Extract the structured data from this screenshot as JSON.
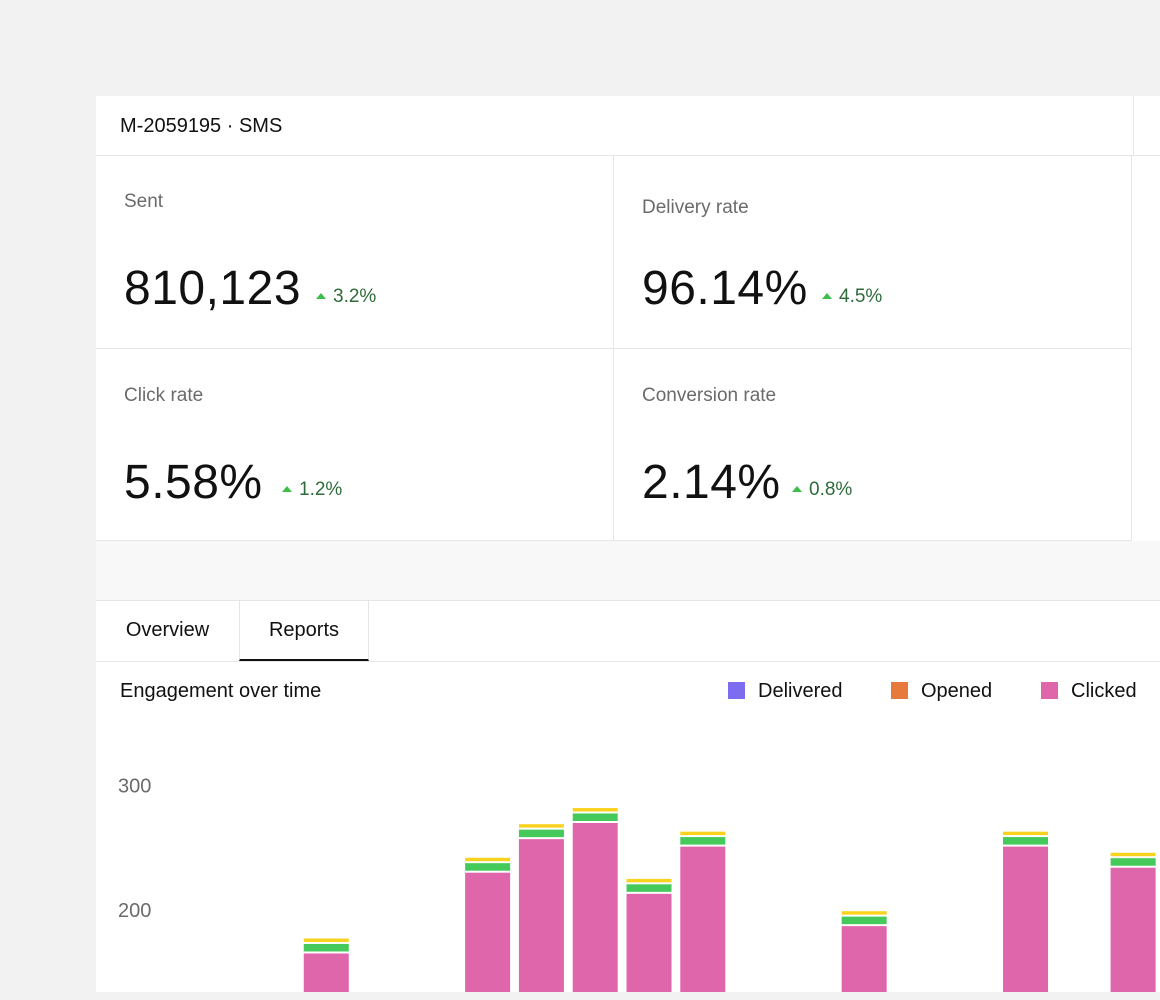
{
  "header": {
    "title": "M-2059195 · SMS"
  },
  "stats": [
    {
      "label": "Sent",
      "value": "810,123",
      "delta": "3.2%"
    },
    {
      "label": "Delivery rate",
      "value": "96.14%",
      "delta": "4.5%"
    },
    {
      "label": "Click rate",
      "value": "5.58%",
      "delta": "1.2%"
    },
    {
      "label": "Conversion rate",
      "value": "2.14%",
      "delta": "0.8%"
    }
  ],
  "tabs": [
    {
      "label": "Overview",
      "active": false
    },
    {
      "label": "Reports",
      "active": true
    }
  ],
  "chart_data": {
    "type": "bar",
    "stacked": true,
    "title": "Engagement over time",
    "legend": [
      {
        "name": "Delivered",
        "color": "#7b6cf0"
      },
      {
        "name": "Opened",
        "color": "#e8793c"
      },
      {
        "name": "Clicked",
        "color": "#e066ab"
      }
    ],
    "segment_colors": {
      "clicked": "#e066ab",
      "green": "#45c95a",
      "yellow": "#f8d21c"
    },
    "y_ticks": [
      300,
      200
    ],
    "ylim_visible": [
      134,
      340
    ],
    "bar_slots": [
      3,
      6,
      7,
      8,
      9,
      10,
      13,
      16,
      18
    ],
    "slot_count": 19,
    "clicked_top": [
      165,
      230,
      257,
      270,
      213,
      251,
      187,
      251,
      234
    ],
    "green_band": 11,
    "yellow_band": 5
  }
}
